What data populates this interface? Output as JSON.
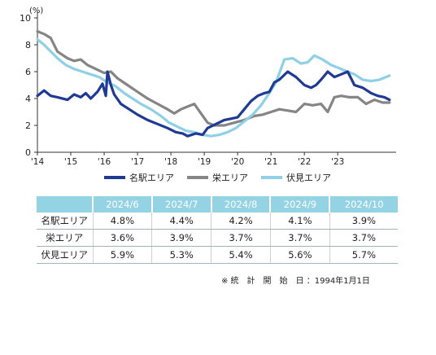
{
  "chart_data": {
    "type": "line",
    "ylabel": "(%)",
    "ylim": [
      0,
      10
    ],
    "yticks": [
      "0",
      "2",
      "4",
      "6",
      "8",
      "10"
    ],
    "xlim": [
      2014,
      2024.75
    ],
    "xtick_labels": [
      "'14",
      "'15",
      "'16",
      "'17",
      "'18",
      "'19",
      "'20",
      "'21",
      "'22",
      "'23"
    ],
    "grid": false,
    "legend": "bottom",
    "series": [
      {
        "name": "名駅エリア",
        "color": "#1f3a93",
        "x": [
          2014,
          2014.2,
          2014.4,
          2014.6,
          2014.9,
          2015.1,
          2015.3,
          2015.45,
          2015.6,
          2015.8,
          2015.95,
          2016.05,
          2016.1,
          2016.2,
          2016.3,
          2016.5,
          2016.75,
          2017.0,
          2017.3,
          2017.6,
          2017.9,
          2018.15,
          2018.35,
          2018.5,
          2018.75,
          2018.95,
          2019.1,
          2019.35,
          2019.6,
          2019.8,
          2020.0,
          2020.2,
          2020.4,
          2020.6,
          2020.8,
          2020.95,
          2021.1,
          2021.25,
          2021.5,
          2021.75,
          2022.0,
          2022.2,
          2022.35,
          2022.5,
          2022.7,
          2022.9,
          2023.1,
          2023.3,
          2023.5,
          2023.75,
          2024.0,
          2024.2,
          2024.4,
          2024.55
        ],
        "values": [
          4.2,
          4.6,
          4.2,
          4.1,
          3.9,
          4.3,
          4.1,
          4.4,
          4.0,
          4.5,
          5.1,
          4.2,
          6.0,
          5.0,
          4.3,
          3.6,
          3.2,
          2.8,
          2.4,
          2.1,
          1.8,
          1.5,
          1.4,
          1.2,
          1.4,
          1.3,
          1.8,
          2.1,
          2.4,
          2.5,
          2.6,
          3.2,
          3.8,
          4.2,
          4.4,
          4.5,
          5.2,
          5.4,
          6.0,
          5.6,
          5.0,
          4.8,
          5.0,
          5.4,
          6.0,
          5.6,
          5.8,
          6.0,
          5.0,
          4.8,
          4.4,
          4.2,
          4.1,
          3.9
        ]
      },
      {
        "name": "栄エリア",
        "color": "#858585",
        "x": [
          2014,
          2014.2,
          2014.4,
          2014.6,
          2014.9,
          2015.1,
          2015.3,
          2015.5,
          2015.75,
          2016.0,
          2016.2,
          2016.4,
          2016.7,
          2017.0,
          2017.3,
          2017.6,
          2017.9,
          2018.1,
          2018.3,
          2018.5,
          2018.7,
          2018.9,
          2019.1,
          2019.3,
          2019.6,
          2019.9,
          2020.2,
          2020.5,
          2020.75,
          2021.0,
          2021.25,
          2021.5,
          2021.75,
          2022.0,
          2022.25,
          2022.5,
          2022.7,
          2022.9,
          2023.1,
          2023.35,
          2023.6,
          2023.85,
          2024.1,
          2024.35,
          2024.55
        ],
        "values": [
          9.0,
          8.8,
          8.5,
          7.5,
          7.0,
          6.8,
          6.9,
          6.5,
          6.2,
          5.9,
          6.0,
          5.5,
          5.0,
          4.5,
          4.0,
          3.6,
          3.2,
          2.9,
          3.2,
          3.4,
          3.6,
          2.9,
          2.2,
          2.0,
          2.0,
          2.2,
          2.4,
          2.7,
          2.8,
          3.0,
          3.2,
          3.1,
          3.0,
          3.6,
          3.5,
          3.6,
          3.0,
          4.1,
          4.2,
          4.1,
          4.1,
          3.6,
          3.9,
          3.7,
          3.7
        ]
      },
      {
        "name": "伏見エリア",
        "color": "#8fd0e6",
        "x": [
          2014,
          2014.2,
          2014.4,
          2014.6,
          2014.85,
          2015.1,
          2015.35,
          2015.6,
          2015.85,
          2016.1,
          2016.35,
          2016.6,
          2016.85,
          2017.1,
          2017.4,
          2017.7,
          2017.95,
          2018.2,
          2018.45,
          2018.7,
          2018.95,
          2019.2,
          2019.45,
          2019.7,
          2019.95,
          2020.2,
          2020.45,
          2020.7,
          2020.95,
          2021.15,
          2021.4,
          2021.65,
          2021.9,
          2022.1,
          2022.3,
          2022.55,
          2022.8,
          2023.0,
          2023.2,
          2023.5,
          2023.75,
          2024.0,
          2024.25,
          2024.55
        ],
        "values": [
          8.4,
          8.0,
          7.5,
          7.0,
          6.5,
          6.2,
          6.0,
          5.8,
          5.6,
          5.2,
          4.9,
          4.4,
          4.0,
          3.6,
          3.2,
          2.7,
          2.2,
          1.9,
          1.6,
          1.5,
          1.3,
          1.2,
          1.3,
          1.5,
          1.8,
          2.3,
          2.8,
          3.5,
          4.4,
          5.2,
          6.9,
          7.0,
          6.6,
          6.7,
          7.2,
          6.9,
          6.5,
          6.3,
          6.1,
          5.8,
          5.4,
          5.3,
          5.4,
          5.7
        ]
      }
    ]
  },
  "legend": [
    {
      "label": "名駅エリア",
      "color": "#1f3a93"
    },
    {
      "label": "栄エリア",
      "color": "#858585"
    },
    {
      "label": "伏見エリア",
      "color": "#8fd0e6"
    }
  ],
  "table": {
    "header": [
      "",
      "2024/6",
      "2024/7",
      "2024/8",
      "2024/9",
      "2024/10"
    ],
    "rows": [
      {
        "label": "名駅エリア",
        "values": [
          "4.8%",
          "4.4%",
          "4.2%",
          "4.1%",
          "3.9%"
        ]
      },
      {
        "label": "栄エリア",
        "values": [
          "3.6%",
          "3.9%",
          "3.7%",
          "3.7%",
          "3.7%"
        ]
      },
      {
        "label": "伏見エリア",
        "values": [
          "5.9%",
          "5.3%",
          "5.4%",
          "5.6%",
          "5.7%"
        ]
      }
    ]
  },
  "note": "※ 統　計　開　始　日 ：1994年1月1日"
}
